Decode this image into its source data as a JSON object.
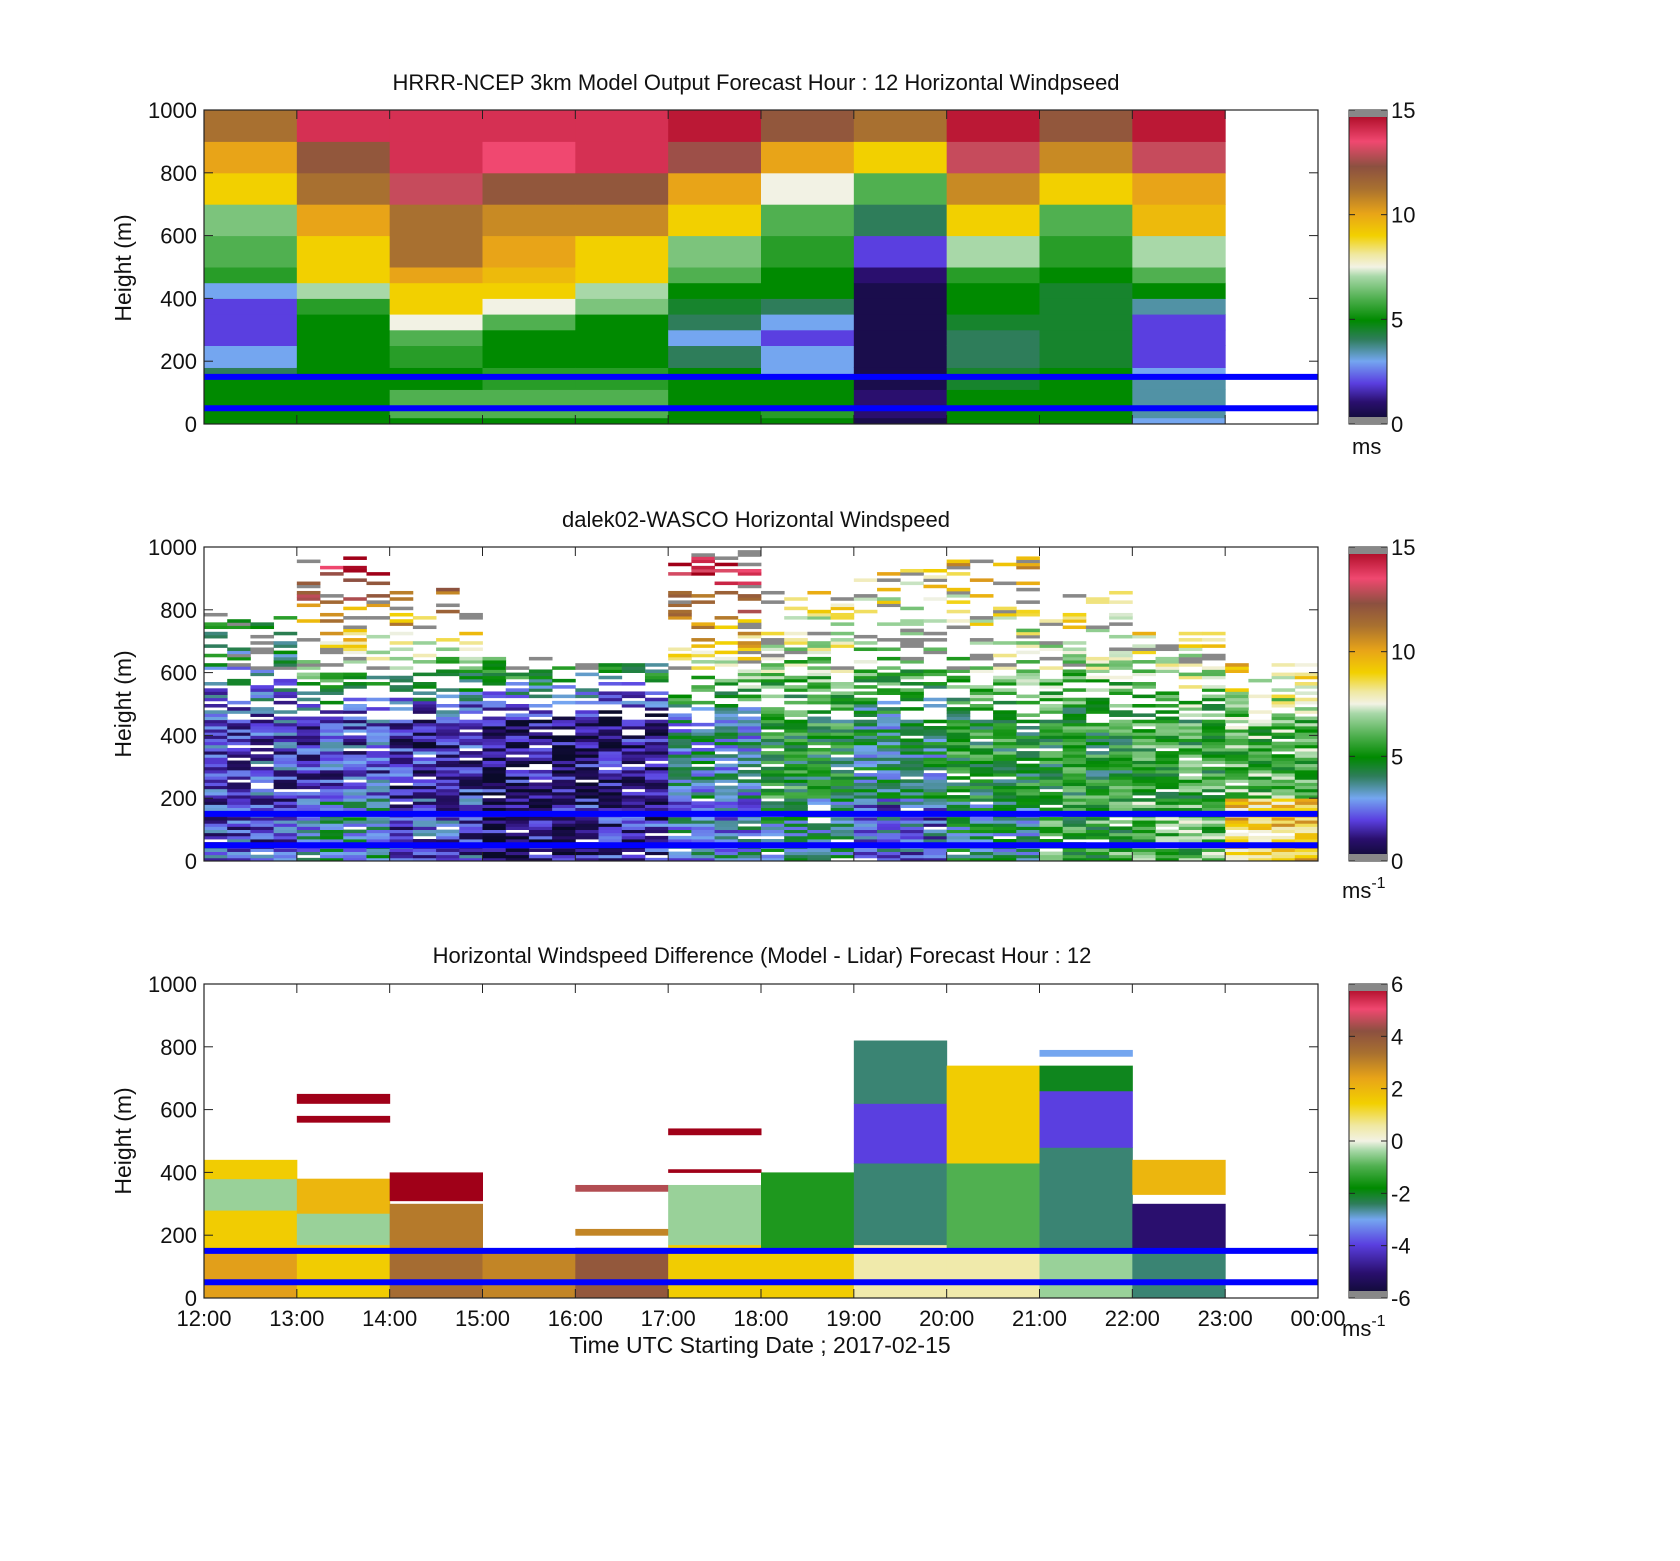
{
  "figure": {
    "xlabel": "Time UTC  Starting Date ; 2017-02-15",
    "x_tick_labels": [
      "12:00",
      "13:00",
      "14:00",
      "15:00",
      "16:00",
      "17:00",
      "18:00",
      "19:00",
      "20:00",
      "21:00",
      "22:00",
      "23:00",
      "00:00"
    ],
    "blue_line_heights_m": [
      50,
      150
    ],
    "blue_line_color": "#0000ff"
  },
  "panels": [
    {
      "title": "HRRR-NCEP 3km Model Output   Forecast Hour : 12 Horizontal Windpseed",
      "ylabel": "Height (m)",
      "colorbar_unit": "ms",
      "colorbar_unit_sup": ""
    },
    {
      "title": "dalek02-WASCO  Horizontal Windspeed",
      "ylabel": "Height (m)",
      "colorbar_unit": "ms",
      "colorbar_unit_sup": "-1"
    },
    {
      "title": "Horizontal Windspeed Difference (Model - Lidar) Forecast Hour : 12",
      "ylabel": "Height (m)",
      "colorbar_unit": "ms",
      "colorbar_unit_sup": "-1"
    }
  ],
  "chart_data": [
    {
      "type": "heatmap",
      "title": "HRRR-NCEP 3km Model Output   Forecast Hour : 12 Horizontal Windpseed",
      "xlabel": "",
      "ylabel": "Height (m)",
      "ylim": [
        0,
        1000
      ],
      "y_ticks": [
        0,
        200,
        400,
        600,
        800,
        1000
      ],
      "x_ticks": [
        "12:00",
        "13:00",
        "14:00",
        "15:00",
        "16:00",
        "17:00",
        "18:00",
        "19:00",
        "20:00",
        "21:00",
        "22:00",
        "23:00",
        "00:00"
      ],
      "colorbar": {
        "min": 0,
        "max": 15,
        "ticks": [
          0,
          5,
          10,
          15
        ],
        "unit": "ms"
      },
      "height_levels_m": [
        0,
        20,
        50,
        110,
        150,
        180,
        250,
        300,
        350,
        400,
        450,
        500,
        600,
        700,
        800,
        900,
        1000
      ],
      "hours_utc": [
        "12:00",
        "13:00",
        "14:00",
        "15:00",
        "16:00",
        "17:00",
        "18:00",
        "19:00",
        "20:00",
        "21:00",
        "22:00"
      ],
      "windspeed_columns": [
        [
          5,
          5,
          5,
          5,
          4,
          3,
          2,
          2,
          2,
          3,
          5.5,
          6,
          6.5,
          9,
          10,
          11,
          12
        ],
        [
          5,
          5,
          5,
          5,
          5,
          5,
          5,
          5,
          5.5,
          7,
          9,
          9,
          10,
          11,
          12,
          14,
          14
        ],
        [
          5,
          6,
          6,
          5,
          5,
          5.5,
          6,
          7.5,
          9,
          9,
          10,
          11,
          11,
          13,
          14,
          14,
          15
        ],
        [
          5,
          6,
          6,
          5.5,
          5.5,
          5,
          5,
          6,
          7.5,
          9,
          9.5,
          10,
          10.5,
          12,
          13.5,
          14,
          15
        ],
        [
          5,
          6,
          6,
          5.5,
          5.5,
          5,
          5,
          5,
          6.5,
          7,
          9,
          9,
          10.5,
          12,
          14,
          14,
          16
        ],
        [
          5,
          5,
          5,
          5,
          5,
          4,
          3,
          4,
          4.5,
          5,
          6,
          6.5,
          9,
          10,
          12.5,
          14.5,
          16
        ],
        [
          5,
          5.5,
          5,
          5,
          3,
          3,
          2,
          3,
          4,
          5,
          5,
          5.5,
          6,
          7.5,
          10,
          12,
          13
        ],
        [
          0.5,
          1,
          1,
          0.5,
          0.5,
          0.5,
          0.5,
          0.5,
          0.5,
          0.5,
          1,
          2,
          4,
          6,
          9,
          11,
          13
        ],
        [
          5,
          5,
          5,
          4.5,
          4.5,
          4,
          4,
          4.5,
          5,
          5,
          5.5,
          7,
          9,
          10.5,
          13,
          14.5,
          16
        ],
        [
          5,
          5,
          5,
          5,
          5,
          4.5,
          4.5,
          4.5,
          4.5,
          4.5,
          5,
          5.5,
          6,
          9,
          10.5,
          12,
          13
        ],
        [
          3,
          3.5,
          3.5,
          3.5,
          3,
          2,
          2,
          2,
          3.5,
          5,
          6,
          7,
          9.5,
          10,
          13,
          14.5,
          16
        ]
      ]
    },
    {
      "type": "heatmap",
      "title": "dalek02-WASCO  Horizontal Windspeed",
      "xlabel": "",
      "ylabel": "Height (m)",
      "ylim": [
        0,
        1000
      ],
      "y_ticks": [
        0,
        200,
        400,
        600,
        800,
        1000
      ],
      "x_ticks": [
        "12:00",
        "13:00",
        "14:00",
        "15:00",
        "16:00",
        "17:00",
        "18:00",
        "19:00",
        "20:00",
        "21:00",
        "22:00",
        "23:00",
        "00:00"
      ],
      "colorbar": {
        "min": 0,
        "max": 15,
        "ticks": [
          0,
          5,
          10,
          15
        ],
        "unit": "ms-1"
      },
      "hours_utc": [
        "12:00",
        "13:00",
        "14:00",
        "15:00",
        "16:00",
        "17:00",
        "18:00",
        "19:00",
        "20:00",
        "21:00",
        "22:00",
        "23:00"
      ],
      "low_level_mean_windspeed": [
        2,
        3.5,
        2,
        1,
        1.5,
        3,
        4,
        2.5,
        4,
        5.5,
        6,
        9
      ],
      "mid_level_mean_windspeed": [
        2,
        2,
        1.5,
        1,
        1,
        3.5,
        5,
        4,
        5,
        5,
        5.5,
        6
      ],
      "upper_level_mean_windspeed": [
        8,
        16,
        16,
        16,
        14,
        16,
        10,
        10,
        10,
        11,
        12,
        16
      ],
      "max_valid_height_m": [
        780,
        960,
        870,
        640,
        620,
        980,
        860,
        920,
        960,
        850,
        730,
        620
      ]
    },
    {
      "type": "heatmap",
      "title": "Horizontal Windspeed Difference (Model - Lidar) Forecast Hour : 12",
      "xlabel": "Time UTC  Starting Date ; 2017-02-15",
      "ylabel": "Height (m)",
      "ylim": [
        0,
        1000
      ],
      "y_ticks": [
        0,
        200,
        400,
        600,
        800,
        1000
      ],
      "x_ticks": [
        "12:00",
        "13:00",
        "14:00",
        "15:00",
        "16:00",
        "17:00",
        "18:00",
        "19:00",
        "20:00",
        "21:00",
        "22:00",
        "23:00",
        "00:00"
      ],
      "colorbar": {
        "min": -6,
        "max": 6,
        "ticks": [
          -6,
          -4,
          -2,
          0,
          2,
          4,
          6
        ],
        "unit": "ms-1"
      },
      "hours_utc": [
        "12:00",
        "13:00",
        "14:00",
        "15:00",
        "16:00",
        "17:00",
        "18:00",
        "19:00",
        "20:00",
        "21:00",
        "22:00"
      ],
      "difference_segments": [
        [
          [
            0,
            160,
            2.5
          ],
          [
            160,
            280,
            1.5
          ],
          [
            280,
            380,
            -0.5
          ],
          [
            380,
            440,
            1.5
          ]
        ],
        [
          [
            0,
            170,
            1.5
          ],
          [
            170,
            270,
            -0.5
          ],
          [
            270,
            380,
            2
          ],
          [
            560,
            580,
            6
          ],
          [
            620,
            650,
            6
          ]
        ],
        [
          [
            0,
            150,
            3.5
          ],
          [
            150,
            300,
            3.2
          ],
          [
            310,
            400,
            6
          ]
        ],
        [
          [
            0,
            150,
            3
          ]
        ],
        [
          [
            0,
            160,
            4
          ],
          [
            200,
            220,
            3
          ],
          [
            340,
            360,
            4.5
          ]
        ],
        [
          [
            0,
            170,
            1.5
          ],
          [
            170,
            360,
            -0.5
          ],
          [
            400,
            410,
            6
          ],
          [
            520,
            540,
            6
          ]
        ],
        [
          [
            0,
            160,
            1.5
          ],
          [
            160,
            400,
            -1.5
          ]
        ],
        [
          [
            0,
            170,
            0.5
          ],
          [
            170,
            430,
            -2.5
          ],
          [
            430,
            620,
            -4
          ],
          [
            620,
            820,
            -2.5
          ]
        ],
        [
          [
            0,
            150,
            0.5
          ],
          [
            150,
            430,
            -1
          ],
          [
            430,
            740,
            1.5
          ]
        ],
        [
          [
            0,
            160,
            -0.5
          ],
          [
            160,
            480,
            -2.5
          ],
          [
            480,
            660,
            -4
          ],
          [
            660,
            740,
            -2
          ],
          [
            770,
            790,
            -3
          ]
        ],
        [
          [
            0,
            160,
            -2.5
          ],
          [
            160,
            300,
            -5
          ],
          [
            330,
            440,
            2
          ]
        ]
      ]
    }
  ]
}
